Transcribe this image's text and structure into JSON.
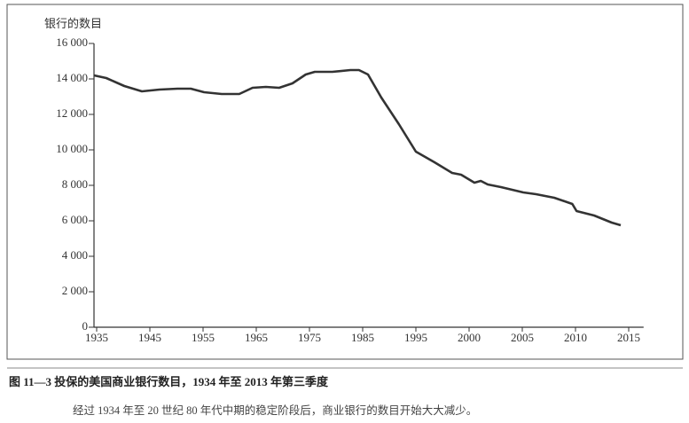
{
  "chart_data": {
    "type": "line",
    "y_label": "银行的数目",
    "caption": "图 11—3   投保的美国商业银行数目，1934 年至 2013 年第三季度",
    "note": "经过 1934 年至 20 世纪 80 年代中期的稳定阶段后，商业银行的数目开始大大减少。",
    "x": [
      1934.5,
      1936.8,
      1940.2,
      1943.5,
      1946.8,
      1950.2,
      1952.7,
      1955.2,
      1958.5,
      1961.8,
      1964.3,
      1966.8,
      1969.3,
      1971.8,
      1974.3,
      1976,
      1979.3,
      1982.7,
      1984.3,
      1986,
      1988.5,
      1991.8,
      1995,
      1996.75,
      1998.4,
      1999.25,
      2000.5,
      2001.1,
      2001.75,
      2003,
      2005.1,
      2006.3,
      2008,
      2009.7,
      2010.1,
      2011.75,
      2013.4,
      2014.25
    ],
    "series": [
      {
        "color": "#333333",
        "values": [
          14200,
          14050,
          13600,
          13300,
          13400,
          13450,
          13450,
          13250,
          13150,
          13150,
          13500,
          13550,
          13500,
          13750,
          14250,
          14400,
          14400,
          14500,
          14500,
          14250,
          12950,
          11450,
          9900,
          9300,
          8700,
          8600,
          8150,
          8250,
          8050,
          7900,
          7600,
          7500,
          7300,
          6950,
          6550,
          6300,
          5900,
          5750
        ]
      }
    ],
    "xlim": [
      1934.5,
      2016.4
    ],
    "xticks": [
      1935,
      1945,
      1955,
      1965,
      1975,
      1985,
      1995,
      2000,
      2005,
      2010,
      2015
    ],
    "ylim": [
      0,
      16000
    ],
    "yticks": [
      0,
      {
        "value": 2000,
        "label": "2 000"
      },
      {
        "value": 4000,
        "label": "4 000"
      },
      {
        "value": 6000,
        "label": "6 000"
      },
      {
        "value": 8000,
        "label": "8 000"
      },
      {
        "value": 10000,
        "label": "10 000"
      },
      {
        "value": 12000,
        "label": "12 000"
      },
      {
        "value": 14000,
        "label": "14 000"
      },
      {
        "value": 16000,
        "label": "16 000"
      }
    ]
  }
}
